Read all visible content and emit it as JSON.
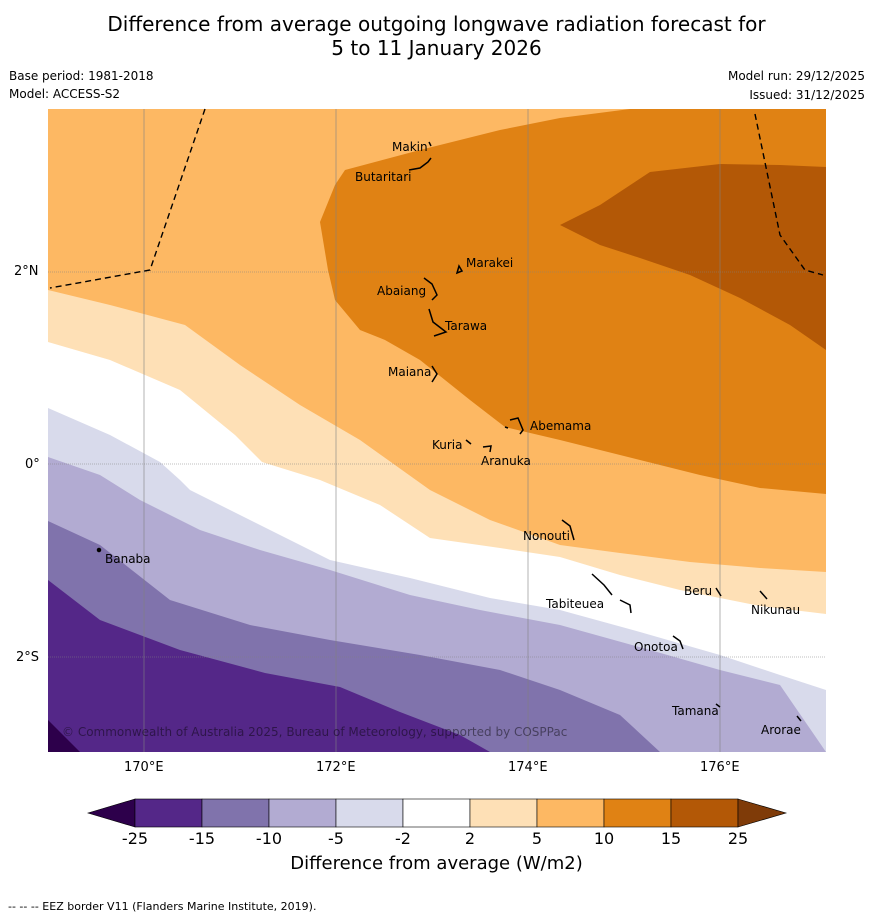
{
  "title": {
    "line1": "Difference from average outgoing longwave radiation forecast for",
    "line2": "5 to 11 January 2026"
  },
  "meta": {
    "base_period": "Base period: 1981-2018",
    "model": "Model: ACCESS-S2",
    "model_run": "Model run: 29/12/2025",
    "issued": "Issued: 31/12/2025"
  },
  "map": {
    "lat_labels": [
      "2°N",
      "0°",
      "2°S"
    ],
    "lon_labels": [
      "170°E",
      "172°E",
      "174°E",
      "176°E"
    ],
    "copyright": "© Commonwealth of Australia 2025, Bureau of Meteorology, supported by COSPPac",
    "places": [
      {
        "id": "makin",
        "name": "Makin"
      },
      {
        "id": "butaritari",
        "name": "Butaritari"
      },
      {
        "id": "marakei",
        "name": "Marakei"
      },
      {
        "id": "abaiang",
        "name": "Abaiang"
      },
      {
        "id": "tarawa",
        "name": "Tarawa"
      },
      {
        "id": "maiana",
        "name": "Maiana"
      },
      {
        "id": "abemama",
        "name": "Abemama"
      },
      {
        "id": "kuria",
        "name": "Kuria"
      },
      {
        "id": "aranuka",
        "name": "Aranuka"
      },
      {
        "id": "nonouti",
        "name": "Nonouti"
      },
      {
        "id": "banaba",
        "name": "Banaba"
      },
      {
        "id": "beru",
        "name": "Beru"
      },
      {
        "id": "tabiteuea",
        "name": "Tabiteuea"
      },
      {
        "id": "nikunau",
        "name": "Nikunau"
      },
      {
        "id": "onotoa",
        "name": "Onotoa"
      },
      {
        "id": "tamana",
        "name": "Tamana"
      },
      {
        "id": "arorae",
        "name": "Arorae"
      }
    ]
  },
  "colorbar": {
    "title": "Difference from average (W/m2)",
    "ticks": [
      "-25",
      "-15",
      "-10",
      "-5",
      "-2",
      "2",
      "5",
      "10",
      "15",
      "25"
    ],
    "colors": {
      "below": "#2d004b",
      "n25_n15": "#542788",
      "n15_n10": "#8073ac",
      "n10_n5": "#b2abd2",
      "n5_n2": "#d8daeb",
      "n2_p2": "#ffffff",
      "p2_p5": "#fee0b6",
      "p5_p10": "#fdb863",
      "p10_p15": "#e08214",
      "p15_p25": "#b35806",
      "above": "#7f3b08"
    }
  },
  "footer": "--  --  -- EEZ border V11 (Flanders Marine Institute, 2019)."
}
